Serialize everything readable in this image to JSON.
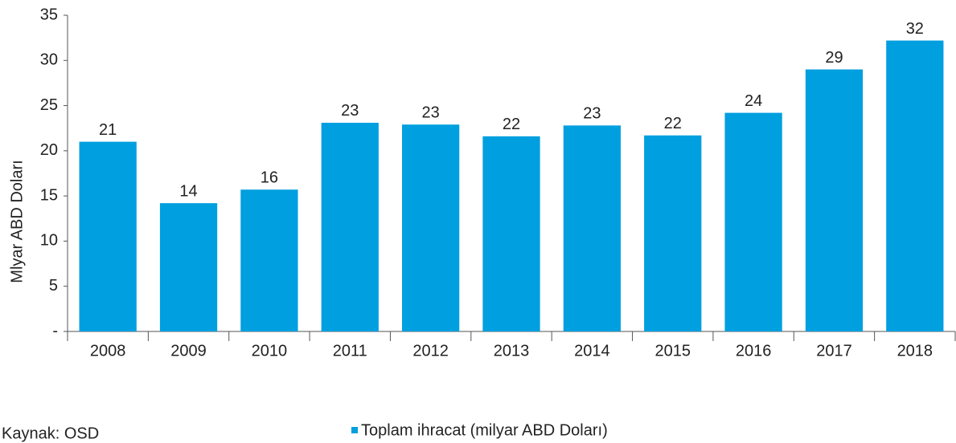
{
  "chart_data": {
    "type": "bar",
    "y_label": "Mlyar ABD Doları",
    "source": "Kaynak:  OSD",
    "categories": [
      "2008",
      "2009",
      "2010",
      "2011",
      "2012",
      "2013",
      "2014",
      "2015",
      "2016",
      "2017",
      "2018"
    ],
    "series": [
      {
        "name": "Toplam ihracat (milyar ABD Doları)",
        "color": "#009fdf",
        "values": [
          21.0,
          14.2,
          15.7,
          23.1,
          22.9,
          21.6,
          22.8,
          21.7,
          24.2,
          29.0,
          32.2
        ],
        "value_labels": [
          "21",
          "14",
          "16",
          "23",
          "23",
          "22",
          "23",
          "22",
          "24",
          "29",
          "32"
        ]
      }
    ],
    "ylim": [
      0,
      35
    ],
    "yticks": [
      {
        "value": 0,
        "label": "-"
      },
      5,
      10,
      15,
      20,
      25,
      30,
      35
    ],
    "grid": false
  }
}
